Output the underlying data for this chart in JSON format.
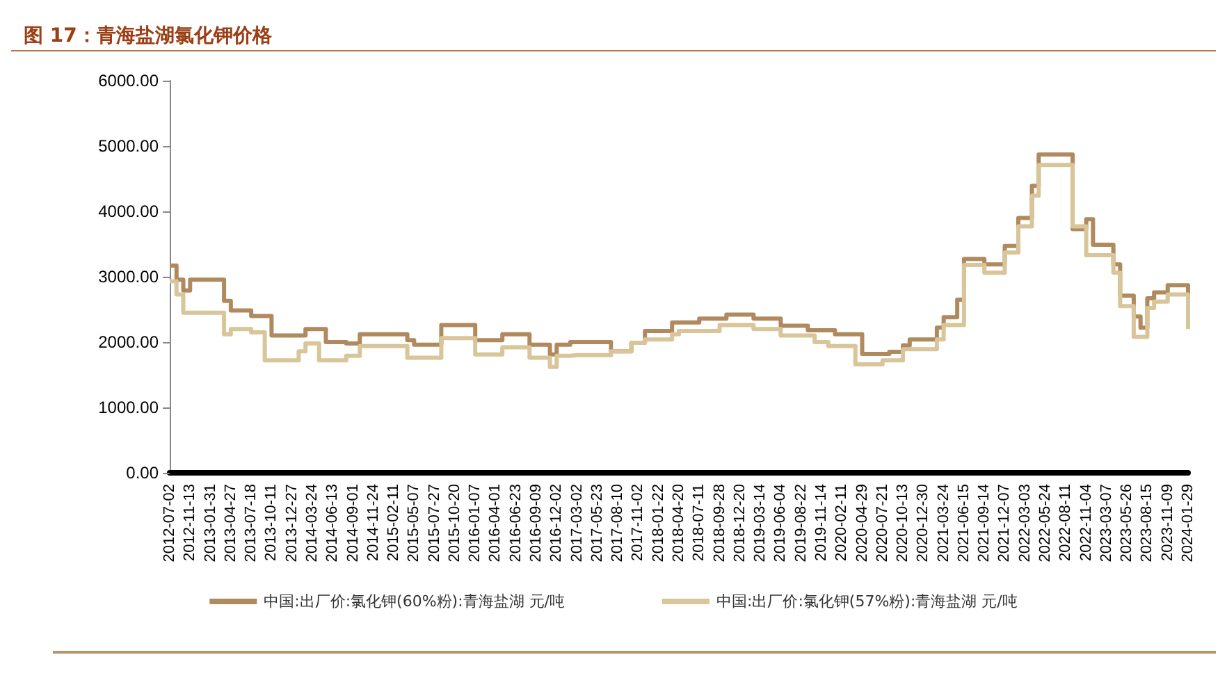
{
  "chart_data": {
    "type": "step",
    "title": "图 17：青海盐湖氯化钾价格",
    "categories": [
      "2012-07-02",
      null,
      null,
      "2012-11-13",
      null,
      null,
      "2013-01-31",
      null,
      null,
      "2013-04-27",
      null,
      null,
      "2013-07-18",
      null,
      null,
      "2013-10-11",
      null,
      null,
      "2013-12-27",
      null,
      null,
      "2014-03-24",
      null,
      null,
      "2014-06-13",
      null,
      null,
      "2014-09-01",
      null,
      null,
      "2014-11-24",
      null,
      null,
      "2015-02-11",
      null,
      null,
      "2015-05-07",
      null,
      null,
      "2015-07-27",
      null,
      null,
      "2015-10-20",
      null,
      null,
      "2016-01-07",
      null,
      null,
      "2016-04-01",
      null,
      null,
      "2016-06-23",
      null,
      null,
      "2016-09-09",
      null,
      null,
      "2016-12-02",
      null,
      null,
      "2017-03-02",
      null,
      null,
      "2017-05-23",
      null,
      null,
      "2017-08-10",
      null,
      null,
      "2017-11-02",
      null,
      null,
      "2018-01-22",
      null,
      null,
      "2018-04-20",
      null,
      null,
      "2018-07-11",
      null,
      null,
      "2018-09-28",
      null,
      null,
      "2018-12-20",
      null,
      null,
      "2019-03-14",
      null,
      null,
      "2019-06-04",
      null,
      null,
      "2019-08-22",
      null,
      null,
      "2019-11-14",
      null,
      null,
      "2020-02-11",
      null,
      null,
      "2020-04-29",
      null,
      null,
      "2020-07-21",
      null,
      null,
      "2020-10-13",
      null,
      null,
      "2020-12-30",
      null,
      null,
      "2021-03-24",
      null,
      null,
      "2021-06-15",
      null,
      null,
      "2021-09-14",
      null,
      null,
      "2021-12-07",
      null,
      null,
      "2022-03-03",
      null,
      null,
      "2022-05-24",
      null,
      null,
      "2022-08-11",
      null,
      null,
      "2022-11-04",
      null,
      null,
      "2023-03-07",
      null,
      null,
      "2023-05-26",
      null,
      null,
      "2023-08-15",
      null,
      null,
      "2023-11-09",
      null,
      null,
      "2024-01-29"
    ],
    "series": [
      {
        "name": "中国:出厂价:氯化钾(60%粉):青海盐湖 元/吨",
        "color": "#b08a5e",
        "values": [
          3170,
          2955,
          2790,
          2955,
          2955,
          2955,
          2955,
          2955,
          2630,
          2485,
          2485,
          2485,
          2400,
          2400,
          2400,
          2100,
          2100,
          2100,
          2100,
          2100,
          2200,
          2200,
          2200,
          2000,
          2000,
          2000,
          1980,
          1980,
          2120,
          2120,
          2120,
          2120,
          2120,
          2120,
          2120,
          2030,
          1960,
          1960,
          1960,
          1960,
          2260,
          2260,
          2260,
          2260,
          2260,
          2030,
          2030,
          2030,
          2030,
          2120,
          2120,
          2120,
          2120,
          1960,
          1960,
          1960,
          1810,
          1960,
          1960,
          2000,
          2000,
          2000,
          2000,
          2000,
          2000,
          1860,
          1860,
          1860,
          1990,
          1990,
          2170,
          2170,
          2170,
          2170,
          2300,
          2300,
          2300,
          2300,
          2360,
          2360,
          2360,
          2360,
          2420,
          2420,
          2420,
          2420,
          2360,
          2360,
          2360,
          2360,
          2250,
          2250,
          2250,
          2250,
          2180,
          2180,
          2180,
          2180,
          2120,
          2120,
          2120,
          2120,
          1820,
          1820,
          1820,
          1820,
          1850,
          1850,
          1950,
          2040,
          2040,
          2040,
          2040,
          2220,
          2380,
          2380,
          2650,
          3270,
          3270,
          3270,
          3190,
          3190,
          3190,
          3470,
          3470,
          3900,
          3900,
          4390,
          4870,
          4870,
          4870,
          4870,
          4870,
          3730,
          3730,
          3880,
          3490,
          3490,
          3490,
          3190,
          2710,
          2710,
          2390,
          2220,
          2670,
          2760,
          2760,
          2870,
          2870,
          2870,
          2380
        ]
      },
      {
        "name": "中国:出厂价:氯化钾(57%粉):青海盐湖 元/吨",
        "color": "#d8c59a",
        "values": [
          2930,
          2730,
          2450,
          2450,
          2450,
          2450,
          2450,
          2450,
          2120,
          2200,
          2200,
          2200,
          2150,
          2150,
          1720,
          1720,
          1720,
          1720,
          1720,
          1860,
          1980,
          1980,
          1720,
          1720,
          1720,
          1720,
          1790,
          1790,
          1940,
          1940,
          1940,
          1940,
          1940,
          1940,
          1940,
          1760,
          1760,
          1760,
          1760,
          1760,
          2060,
          2060,
          2060,
          2060,
          2060,
          1810,
          1810,
          1810,
          1810,
          1920,
          1920,
          1920,
          1920,
          1760,
          1760,
          1760,
          1620,
          1790,
          1790,
          1800,
          1800,
          1800,
          1800,
          1800,
          1800,
          1860,
          1860,
          1860,
          1990,
          1990,
          2040,
          2040,
          2040,
          2040,
          2120,
          2170,
          2170,
          2170,
          2170,
          2170,
          2170,
          2260,
          2260,
          2260,
          2260,
          2260,
          2200,
          2200,
          2200,
          2200,
          2100,
          2100,
          2100,
          2100,
          2100,
          2000,
          2000,
          1940,
          1940,
          1940,
          1940,
          1660,
          1660,
          1660,
          1660,
          1720,
          1720,
          1720,
          1890,
          1890,
          1890,
          1890,
          1890,
          2040,
          2260,
          2260,
          2260,
          3180,
          3180,
          3180,
          3060,
          3060,
          3060,
          3370,
          3370,
          3770,
          3770,
          4240,
          4710,
          4710,
          4710,
          4710,
          4710,
          3770,
          3770,
          3330,
          3330,
          3330,
          3330,
          3060,
          2550,
          2550,
          2080,
          2080,
          2520,
          2620,
          2620,
          2730,
          2730,
          2730,
          2200
        ]
      }
    ],
    "ylim": [
      0,
      6000
    ],
    "yticks": [
      {
        "value": 0,
        "label": "0.00"
      },
      {
        "value": 1000,
        "label": "1000.00"
      },
      {
        "value": 2000,
        "label": "2000.00"
      },
      {
        "value": 3000,
        "label": "3000.00"
      },
      {
        "value": 4000,
        "label": "4000.00"
      },
      {
        "value": 5000,
        "label": "5000.00"
      },
      {
        "value": 6000,
        "label": "6000.00"
      }
    ],
    "grid": false,
    "legend": "bottom",
    "marker": "none",
    "line_style": "solid"
  }
}
